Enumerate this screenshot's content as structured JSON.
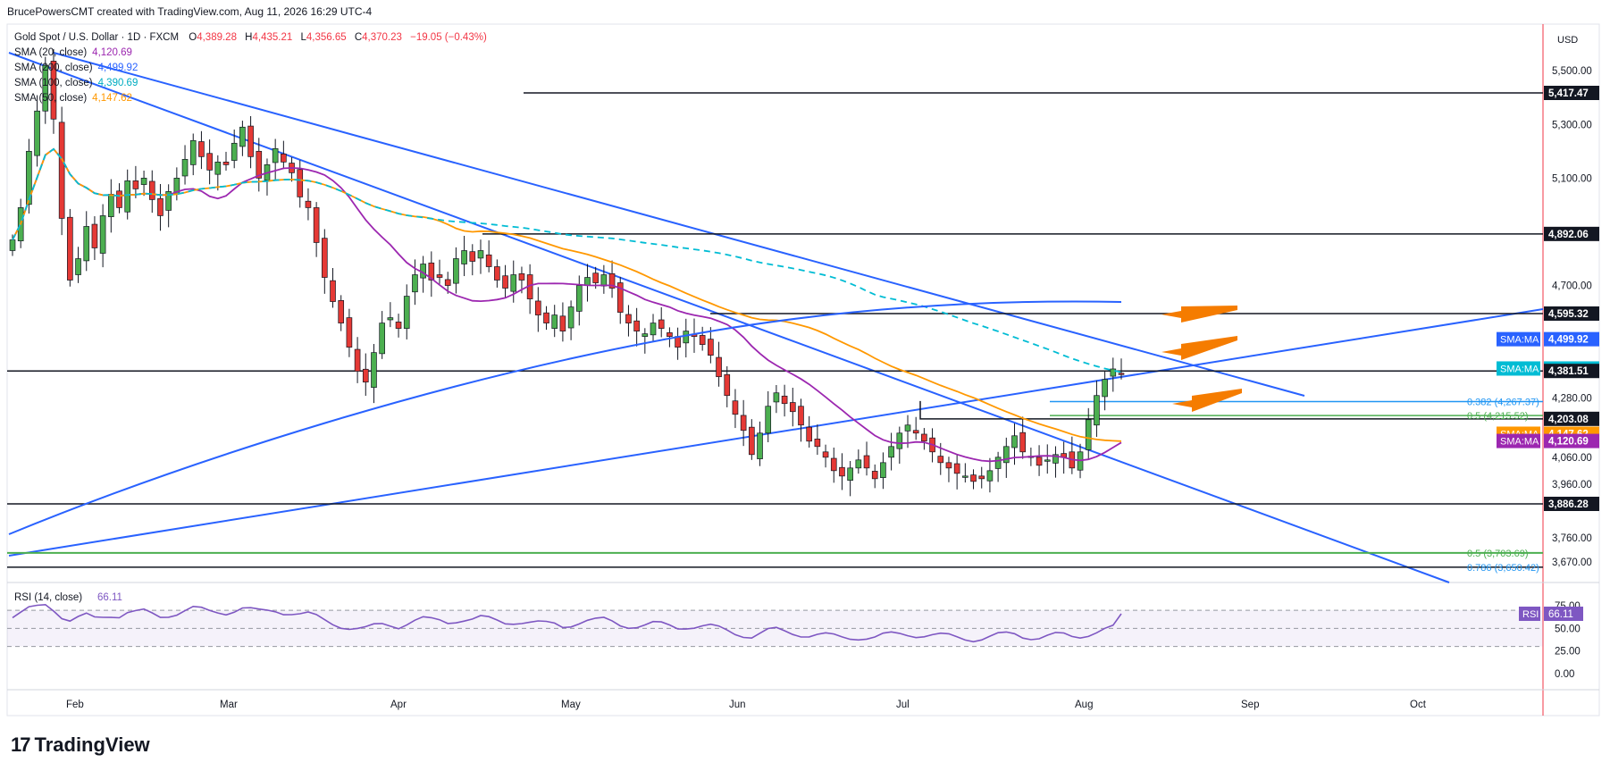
{
  "header": {
    "publisher": "BrucePowersCMT created with TradingView.com, Aug 11, 2026 16:29 UTC-4"
  },
  "legend": {
    "symbol_line": "Gold Spot / U.S. Dollar · 1D · FXCM",
    "ohlc": {
      "O": "4,389.28",
      "H": "4,435.21",
      "L": "4,356.65",
      "C": "4,370.23",
      "chg": "−19.05 (−0.43%)"
    },
    "indicators": [
      {
        "label": "SMA (20, close)",
        "value": "4,120.69",
        "color": "#9c27b0"
      },
      {
        "label": "SMA (200, close)",
        "value": "4,499.92",
        "color": "#2962ff"
      },
      {
        "label": "SMA (100, close)",
        "value": "4,390.69",
        "color": "#00bcd4"
      },
      {
        "label": "SMA (50, close)",
        "value": "4,147.62",
        "color": "#ff9800"
      }
    ]
  },
  "axis": {
    "currency": "USD",
    "price_ticks": [
      "5,500.00",
      "5,300.00",
      "5,100.00",
      "4,700.00",
      "4,280.00",
      "4,060.00",
      "3,960.00",
      "3,760.00",
      "3,670.00"
    ],
    "time_ticks": [
      "Feb",
      "Mar",
      "Apr",
      "May",
      "Jun",
      "Jul",
      "Aug",
      "Sep",
      "Oct"
    ],
    "rsi_ticks": [
      "75.00",
      "50.00",
      "25.00",
      "0.00"
    ]
  },
  "price_labels": [
    {
      "text": "5,417.47",
      "price": 5417.47,
      "style": "black"
    },
    {
      "text": "4,892.06",
      "price": 4892.06,
      "style": "black"
    },
    {
      "text": "4,595.32",
      "price": 4595.32,
      "style": "black"
    },
    {
      "text": "4,499.92",
      "price": 4499.92,
      "style": "blue",
      "tag": "SMA:MA"
    },
    {
      "text": "4,390.69",
      "price": 4390.69,
      "style": "cyan",
      "tag": "SMA:MA"
    },
    {
      "text": "4,381.51",
      "price": 4381.51,
      "style": "black"
    },
    {
      "text": "4,203.08",
      "price": 4203.08,
      "style": "black"
    },
    {
      "text": "4,147.62",
      "price": 4147.62,
      "style": "orange",
      "tag": "SMA:MA"
    },
    {
      "text": "4,120.69",
      "price": 4120.69,
      "style": "purple",
      "tag": "SMA:MA"
    },
    {
      "text": "3,886.28",
      "price": 3886.28,
      "style": "black"
    }
  ],
  "fib_labels": [
    {
      "text": "0.382 (4,267.37)",
      "price": 4267.37,
      "color": "#2196f3"
    },
    {
      "text": "0.5 (4,215.52)",
      "price": 4215.52,
      "color": "#4caf50"
    },
    {
      "text": "0.5 (3,703.69)",
      "price": 3703.69,
      "color": "#4caf50"
    },
    {
      "text": "0.786 (3,650.42)",
      "price": 3650.42,
      "color": "#2196f3"
    }
  ],
  "rsi": {
    "label": "RSI (14, close)",
    "value": "66.11",
    "tag": "RSI",
    "color": "#7e57c2"
  },
  "footer": {
    "brand": "TradingView"
  },
  "chart_data": {
    "type": "candlestick",
    "instrument": "Gold Spot / U.S. Dollar",
    "timeframe": "1D",
    "horizontal_levels": [
      5417.47,
      4892.06,
      4595.32,
      4381.51,
      4203.08,
      3886.28
    ],
    "fib_levels": [
      {
        "ratio": "0.382",
        "price": 4267.37
      },
      {
        "ratio": "0.5",
        "price": 4215.52
      },
      {
        "ratio": "0.5",
        "price": 3703.69
      },
      {
        "ratio": "0.786",
        "price": 3650.42
      }
    ],
    "moving_averages": [
      {
        "name": "SMA 20",
        "last": 4120.69
      },
      {
        "name": "SMA 50",
        "last": 4147.62
      },
      {
        "name": "SMA 100",
        "last": 4390.69
      },
      {
        "name": "SMA 200",
        "last": 4499.92
      }
    ],
    "last_candle": {
      "open": 4389.28,
      "high": 4435.21,
      "low": 4356.65,
      "close": 4370.23
    },
    "rsi_last": 66.11,
    "closes_approx": [
      4870,
      4990,
      5200,
      5350,
      5520,
      5320,
      4950,
      4720,
      4800,
      4920,
      4840,
      4960,
      5040,
      4990,
      5090,
      5060,
      5100,
      5020,
      4960,
      5050,
      5100,
      5170,
      5240,
      5180,
      5130,
      5160,
      5150,
      5230,
      5290,
      5180,
      5100,
      5150,
      5210,
      5160,
      5120,
      5030,
      4990,
      4860,
      4730,
      4640,
      4560,
      4470,
      4380,
      4340,
      4450,
      4560,
      4580,
      4540,
      4660,
      4740,
      4780,
      4720,
      4730,
      4700,
      4800,
      4830,
      4790,
      4830,
      4770,
      4720,
      4690,
      4740,
      4720,
      4650,
      4590,
      4560,
      4590,
      4530,
      4620,
      4700,
      4730,
      4710,
      4740,
      4690,
      4600,
      4560,
      4530,
      4520,
      4560,
      4540,
      4510,
      4470,
      4530,
      4510,
      4480,
      4440,
      4360,
      4290,
      4220,
      4160,
      4070,
      4150,
      4250,
      4300,
      4260,
      4230,
      4180,
      4120,
      4100,
      4060,
      4010,
      3990,
      4020,
      4050,
      4020,
      3980,
      4040,
      4100,
      4150,
      4180,
      4150,
      4120,
      4080,
      4040,
      4020,
      4000,
      3990,
      3970,
      3980,
      4010,
      4060,
      4100,
      4140,
      4080,
      4060,
      4030,
      4050,
      4070,
      4060,
      4020,
      4080,
      4200,
      4290,
      4350,
      4389,
      4370
    ]
  }
}
